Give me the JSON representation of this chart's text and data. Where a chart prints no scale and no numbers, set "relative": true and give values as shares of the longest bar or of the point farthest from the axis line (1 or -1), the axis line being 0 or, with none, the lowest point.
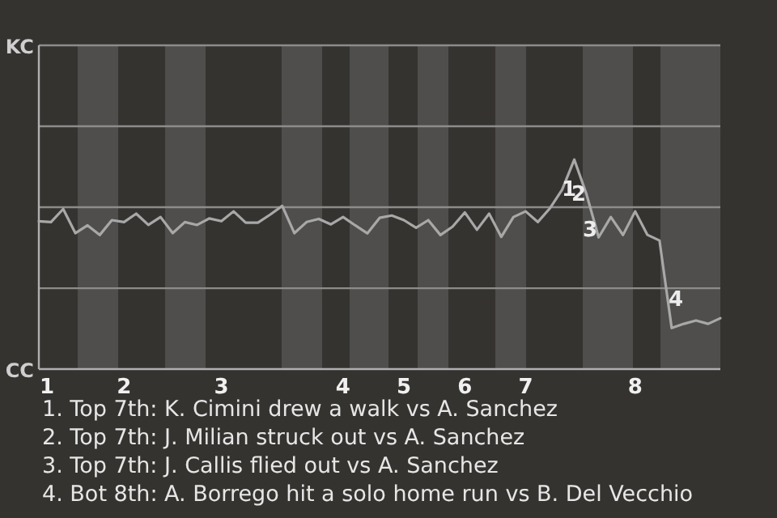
{
  "chart_data": {
    "type": "line",
    "categories": [
      "1",
      null,
      null,
      null,
      null,
      null,
      null,
      "2",
      null,
      null,
      null,
      null,
      null,
      null,
      null,
      "3",
      null,
      null,
      null,
      null,
      null,
      null,
      null,
      null,
      null,
      "4",
      null,
      null,
      null,
      null,
      "5",
      null,
      null,
      null,
      null,
      "6",
      null,
      null,
      null,
      null,
      "7",
      null,
      null,
      null,
      null,
      null,
      null,
      null,
      null,
      "8",
      null,
      null,
      null,
      null,
      null,
      null,
      null
    ],
    "relative": true,
    "series": [
      {
        "color": "#a8a8a8",
        "values": [
          0.706,
          0.702,
          0.764,
          0.649,
          0.686,
          0.64,
          0.711,
          0.702,
          0.742,
          0.688,
          0.726,
          0.649,
          0.702,
          0.688,
          0.719,
          0.706,
          0.753,
          0.699,
          0.699,
          0.737,
          0.779,
          0.649,
          0.702,
          0.717,
          0.691,
          0.726,
          0.686,
          0.648,
          0.722,
          0.733,
          0.711,
          0.675,
          0.711,
          0.64,
          0.68,
          0.748,
          0.665,
          0.742,
          0.631,
          0.726,
          0.753,
          0.702,
          0.768,
          0.856,
          1,
          0.835,
          0.629,
          0.726,
          0.64,
          0.753,
          0.641,
          0.614,
          0.196,
          0.216,
          0.232,
          0.216,
          0.243
        ]
      }
    ],
    "marker": "none",
    "ref_lines": [
      {
        "axis": "y",
        "value": 0.386,
        "color": "#8c8c8a"
      },
      {
        "axis": "y",
        "value": 0.773,
        "color": "#8c8c8a"
      }
    ],
    "annotations": [
      "1",
      "2",
      "3",
      "4",
      "KC",
      "CC",
      "1. Top 7th: K. Cimini drew a walk vs A. Sanchez",
      "2. Top 7th: J. Milian struck out vs A. Sanchez",
      "3. Top 7th: J. Callis flied out vs A. Sanchez",
      "4. Bot 8th: A. Borrego hit a solo home run vs B. Del Vecchio"
    ]
  }
}
